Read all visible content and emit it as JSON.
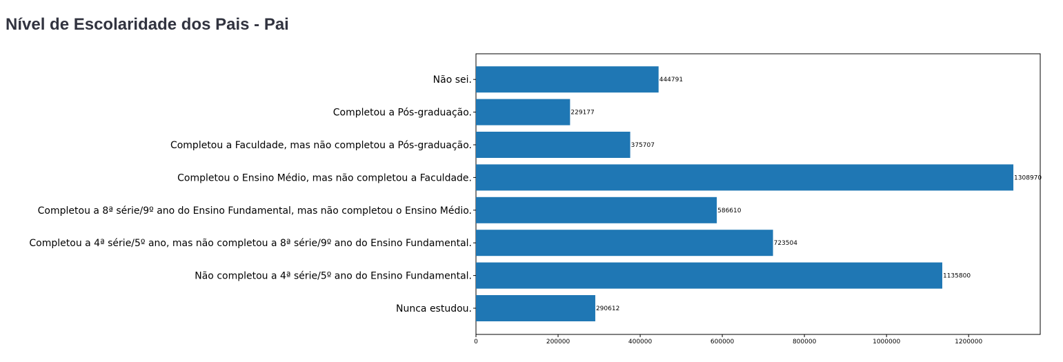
{
  "page": {
    "title": "Nível de Escolaridade dos Pais - Pai"
  },
  "chart_data": {
    "type": "bar",
    "orientation": "horizontal",
    "bar_color": "#1f77b4",
    "categories": [
      "Nunca estudou.",
      "Não completou a 4ª série/5º ano do Ensino Fundamental.",
      "Completou a 4ª série/5º ano, mas não completou a 8ª série/9º ano do Ensino Fundamental.",
      "Completou a 8ª série/9º ano do Ensino Fundamental, mas não completou o Ensino Médio.",
      "Completou o Ensino Médio, mas não completou a Faculdade.",
      "Completou a Faculdade, mas não completou a Pós-graduação.",
      "Completou a Pós-graduação.",
      "Não sei."
    ],
    "values": [
      290612,
      1135800,
      723504,
      586610,
      1308970,
      375707,
      229177,
      444791
    ],
    "xticks": [
      0,
      200000,
      400000,
      600000,
      800000,
      1000000,
      1200000
    ],
    "xlim": [
      0,
      1374418
    ],
    "grid": false,
    "legend": "none"
  }
}
